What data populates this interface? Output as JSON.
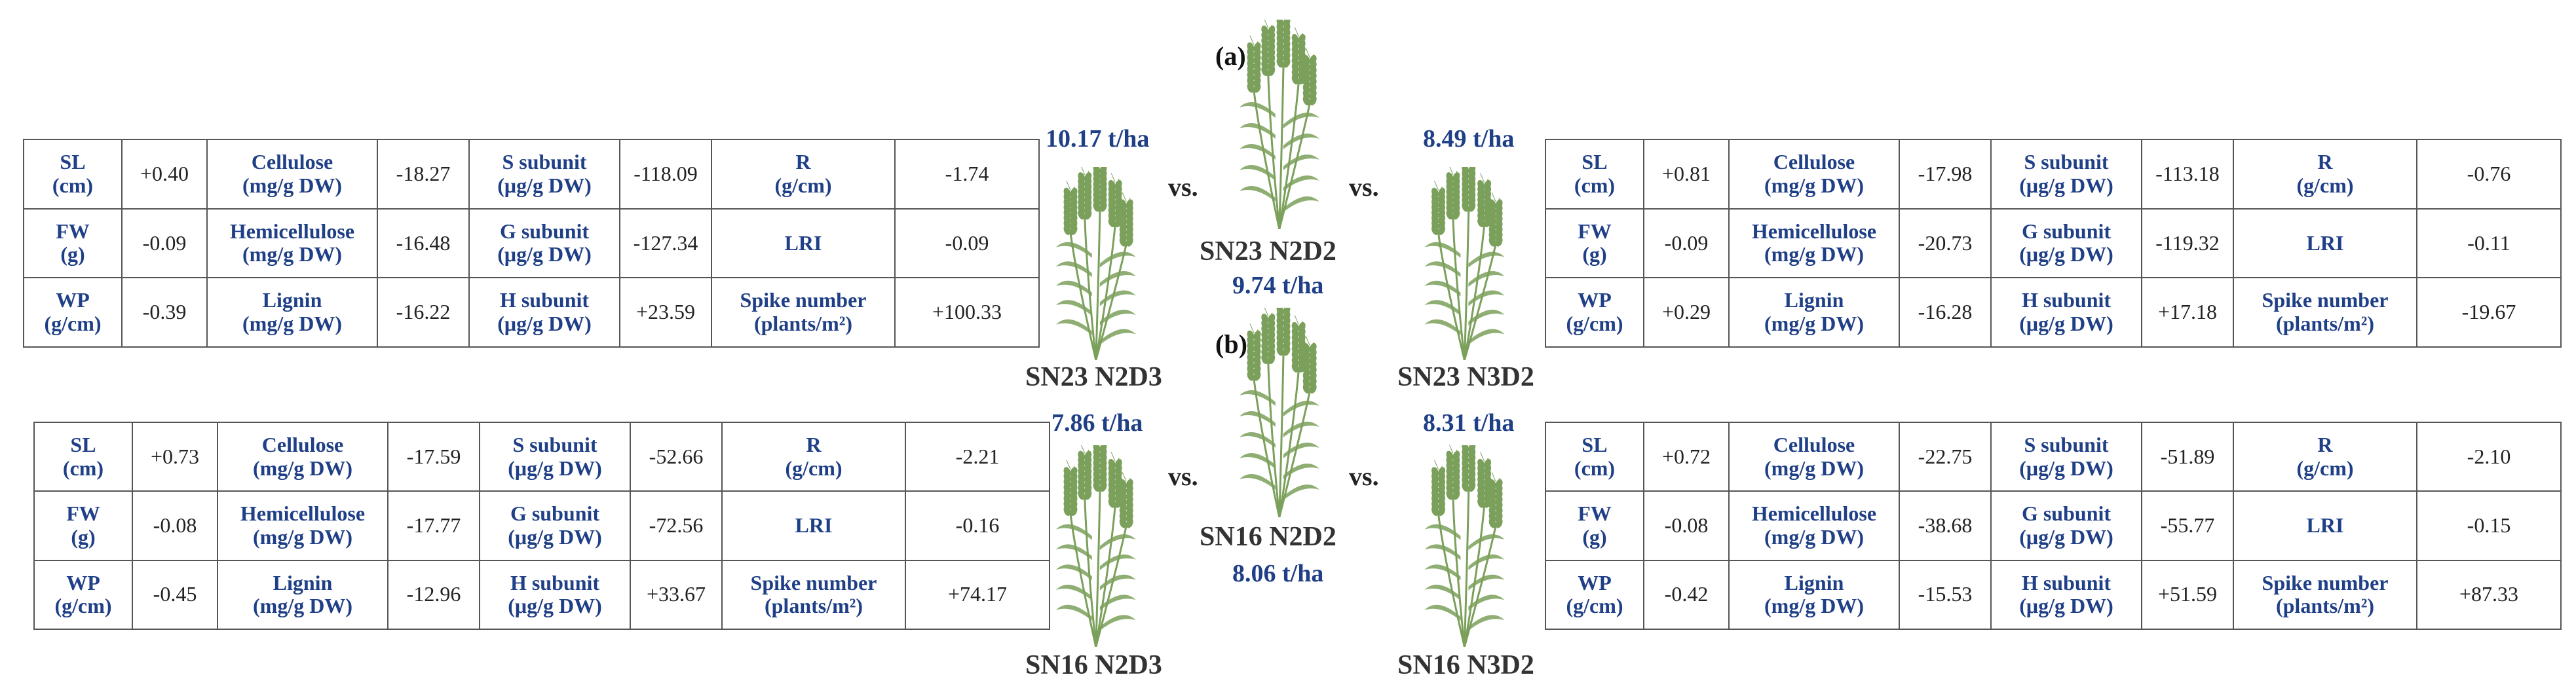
{
  "panels": [
    {
      "label": "(a)",
      "center": {
        "cultivar": "SN23 N2D2",
        "yield": "9.74 t/ha"
      },
      "left": {
        "cultivar": "SN23 N2D3",
        "yield": "10.17 t/ha"
      },
      "right": {
        "cultivar": "SN23 N3D2",
        "yield": "8.49 t/ha"
      },
      "vs_left": "vs.",
      "vs_right": "vs."
    },
    {
      "label": "(b)",
      "center": {
        "cultivar": "SN16 N2D2",
        "yield": "8.06 t/ha"
      },
      "left": {
        "cultivar": "SN16 N2D3",
        "yield": "7.86 t/ha"
      },
      "right": {
        "cultivar": "SN16 N3D2",
        "yield": "8.31 t/ha"
      },
      "vs_left": "vs.",
      "vs_right": "vs."
    }
  ],
  "tables": [
    {
      "rows": [
        [
          {
            "l1": "SL",
            "l2": "(cm)"
          },
          "+0.40",
          {
            "l1": "Cellulose",
            "l2": "(mg/g DW)"
          },
          "-18.27",
          {
            "l1": "S subunit",
            "l2": "(μg/g DW)"
          },
          "-118.09",
          {
            "l1": "R",
            "l2": "(g/cm)"
          },
          "-1.74"
        ],
        [
          {
            "l1": "FW",
            "l2": "(g)"
          },
          "-0.09",
          {
            "l1": "Hemicellulose",
            "l2": "(mg/g DW)"
          },
          "-16.48",
          {
            "l1": "G subunit",
            "l2": "(μg/g DW)"
          },
          "-127.34",
          {
            "l1": "LRI",
            "l2": ""
          },
          "-0.09"
        ],
        [
          {
            "l1": "WP",
            "l2": "(g/cm)"
          },
          "-0.39",
          {
            "l1": "Lignin",
            "l2": "(mg/g DW)"
          },
          "-16.22",
          {
            "l1": "H subunit",
            "l2": "(μg/g DW)"
          },
          "+23.59",
          {
            "l1": "Spike number",
            "l2": "(plants/m²)"
          },
          "+100.33"
        ]
      ]
    },
    {
      "rows": [
        [
          {
            "l1": "SL",
            "l2": "(cm)"
          },
          "+0.81",
          {
            "l1": "Cellulose",
            "l2": "(mg/g DW)"
          },
          "-17.98",
          {
            "l1": "S subunit",
            "l2": "(μg/g DW)"
          },
          "-113.18",
          {
            "l1": "R",
            "l2": "(g/cm)"
          },
          "-0.76"
        ],
        [
          {
            "l1": "FW",
            "l2": "(g)"
          },
          "-0.09",
          {
            "l1": "Hemicellulose",
            "l2": "(mg/g DW)"
          },
          "-20.73",
          {
            "l1": "G subunit",
            "l2": "(μg/g DW)"
          },
          "-119.32",
          {
            "l1": "LRI",
            "l2": ""
          },
          "-0.11"
        ],
        [
          {
            "l1": "WP",
            "l2": "(g/cm)"
          },
          "+0.29",
          {
            "l1": "Lignin",
            "l2": "(mg/g DW)"
          },
          "-16.28",
          {
            "l1": "H subunit",
            "l2": "(μg/g DW)"
          },
          "+17.18",
          {
            "l1": "Spike number",
            "l2": "(plants/m²)"
          },
          "-19.67"
        ]
      ]
    },
    {
      "rows": [
        [
          {
            "l1": "SL",
            "l2": "(cm)"
          },
          "+0.73",
          {
            "l1": "Cellulose",
            "l2": "(mg/g DW)"
          },
          "-17.59",
          {
            "l1": "S subunit",
            "l2": "(μg/g DW)"
          },
          "-52.66",
          {
            "l1": "R",
            "l2": "(g/cm)"
          },
          "-2.21"
        ],
        [
          {
            "l1": "FW",
            "l2": "(g)"
          },
          "-0.08",
          {
            "l1": "Hemicellulose",
            "l2": "(mg/g DW)"
          },
          "-17.77",
          {
            "l1": "G subunit",
            "l2": "(μg/g DW)"
          },
          "-72.56",
          {
            "l1": "LRI",
            "l2": ""
          },
          "-0.16"
        ],
        [
          {
            "l1": "WP",
            "l2": "(g/cm)"
          },
          "-0.45",
          {
            "l1": "Lignin",
            "l2": "(mg/g DW)"
          },
          "-12.96",
          {
            "l1": "H subunit",
            "l2": "(μg/g DW)"
          },
          "+33.67",
          {
            "l1": "Spike number",
            "l2": "(plants/m²)"
          },
          "+74.17"
        ]
      ]
    },
    {
      "rows": [
        [
          {
            "l1": "SL",
            "l2": "(cm)"
          },
          "+0.72",
          {
            "l1": "Cellulose",
            "l2": "(mg/g DW)"
          },
          "-22.75",
          {
            "l1": "S subunit",
            "l2": "(μg/g DW)"
          },
          "-51.89",
          {
            "l1": "R",
            "l2": "(g/cm)"
          },
          "-2.10"
        ],
        [
          {
            "l1": "FW",
            "l2": "(g)"
          },
          "-0.08",
          {
            "l1": "Hemicellulose",
            "l2": "(mg/g DW)"
          },
          "-38.68",
          {
            "l1": "G subunit",
            "l2": "(μg/g DW)"
          },
          "-55.77",
          {
            "l1": "LRI",
            "l2": ""
          },
          "-0.15"
        ],
        [
          {
            "l1": "WP",
            "l2": "(g/cm)"
          },
          "-0.42",
          {
            "l1": "Lignin",
            "l2": "(mg/g DW)"
          },
          "-15.53",
          {
            "l1": "H subunit",
            "l2": "(μg/g DW)"
          },
          "+51.59",
          {
            "l1": "Spike number",
            "l2": "(plants/m²)"
          },
          "+87.33"
        ]
      ]
    }
  ],
  "colors": {
    "label_blue": "#1f3f86",
    "plant_green": "#7ba05b",
    "border": "#555555"
  },
  "icons": {
    "plant": "wheat-plant-icon"
  }
}
